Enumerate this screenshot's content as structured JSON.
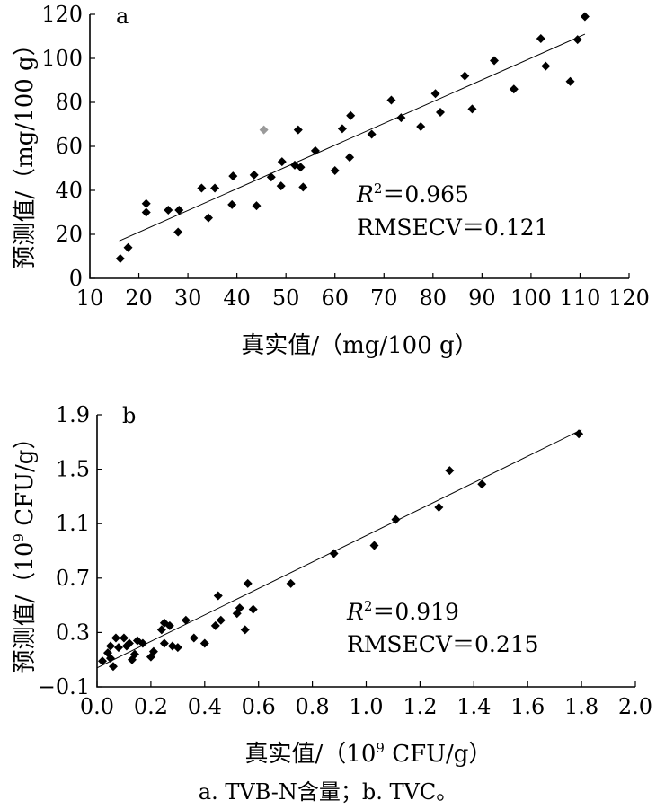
{
  "chart_data": [
    {
      "panel_label": "a",
      "type": "scatter",
      "xlabel": "真实值/（mg/100 g）",
      "ylabel": "预测值/（mg/100 g）",
      "xlim": [
        10,
        120
      ],
      "ylim": [
        0,
        120
      ],
      "xticks": [
        "10",
        "20",
        "30",
        "40",
        "50",
        "60",
        "70",
        "80",
        "90",
        "100",
        "110",
        "120"
      ],
      "yticks": [
        "0",
        "20",
        "40",
        "60",
        "80",
        "100",
        "120"
      ],
      "fit_line": {
        "x1": 16,
        "y1": 17,
        "x2": 111,
        "y2": 111
      },
      "stats": {
        "r2_label": "R",
        "r2_sup": "2",
        "r2_value": "＝0.965",
        "rmsecv": "RMSECV＝0.121"
      },
      "points": [
        {
          "x": 16.2,
          "y": 9
        },
        {
          "x": 17.8,
          "y": 14
        },
        {
          "x": 21.5,
          "y": 30
        },
        {
          "x": 21.5,
          "y": 34
        },
        {
          "x": 26,
          "y": 31
        },
        {
          "x": 28,
          "y": 21
        },
        {
          "x": 28.2,
          "y": 31
        },
        {
          "x": 32.8,
          "y": 41
        },
        {
          "x": 34.2,
          "y": 27.5
        },
        {
          "x": 35.5,
          "y": 41
        },
        {
          "x": 39,
          "y": 33.5
        },
        {
          "x": 39.2,
          "y": 46.5
        },
        {
          "x": 43.5,
          "y": 47
        },
        {
          "x": 44,
          "y": 33
        },
        {
          "x": 47,
          "y": 46
        },
        {
          "x": 49,
          "y": 42
        },
        {
          "x": 49.2,
          "y": 53
        },
        {
          "x": 51.8,
          "y": 51.5
        },
        {
          "x": 52.5,
          "y": 67.5
        },
        {
          "x": 53,
          "y": 50.5
        },
        {
          "x": 53.5,
          "y": 41.5
        },
        {
          "x": 56,
          "y": 58
        },
        {
          "x": 60,
          "y": 49
        },
        {
          "x": 61.5,
          "y": 68
        },
        {
          "x": 63,
          "y": 55
        },
        {
          "x": 63.2,
          "y": 74
        },
        {
          "x": 67.5,
          "y": 65.5
        },
        {
          "x": 71.5,
          "y": 81
        },
        {
          "x": 73.5,
          "y": 73
        },
        {
          "x": 77.5,
          "y": 69
        },
        {
          "x": 80.5,
          "y": 84
        },
        {
          "x": 81.5,
          "y": 75.5
        },
        {
          "x": 86.5,
          "y": 92
        },
        {
          "x": 88,
          "y": 77
        },
        {
          "x": 92.5,
          "y": 99
        },
        {
          "x": 96.5,
          "y": 86
        },
        {
          "x": 102,
          "y": 109
        },
        {
          "x": 103,
          "y": 96.5
        },
        {
          "x": 108,
          "y": 89.5
        },
        {
          "x": 109.5,
          "y": 108.5
        },
        {
          "x": 111,
          "y": 119
        }
      ],
      "outlier": {
        "x": 45.5,
        "y": 67.5,
        "color": "#9a9a9a"
      }
    },
    {
      "panel_label": "b",
      "type": "scatter",
      "xlabel": "真实值/（10",
      "xlabel_sup": "9",
      "xlabel_tail": " CFU/g）",
      "ylabel": "预测值/（10",
      "ylabel_sup": "9",
      "ylabel_tail": " CFU/g）",
      "xlim": [
        0.0,
        2.0
      ],
      "ylim": [
        -0.1,
        1.9
      ],
      "xticks": [
        "0.0",
        "0.2",
        "0.4",
        "0.6",
        "0.8",
        "1.0",
        "1.2",
        "1.4",
        "1.6",
        "1.8",
        "2.0"
      ],
      "yticks": [
        "−0.1",
        "0.3",
        "0.7",
        "1.1",
        "1.5",
        "1.9"
      ],
      "fit_line": {
        "x1": 0.0,
        "y1": 0.04,
        "x2": 1.8,
        "y2": 1.79
      },
      "stats": {
        "r2_label": "R",
        "r2_sup": "2",
        "r2_value": "＝0.919",
        "rmsecv": "RMSECV＝0.215"
      },
      "points": [
        {
          "x": 0.02,
          "y": 0.09
        },
        {
          "x": 0.04,
          "y": 0.15
        },
        {
          "x": 0.05,
          "y": 0.2
        },
        {
          "x": 0.05,
          "y": 0.11
        },
        {
          "x": 0.06,
          "y": 0.05
        },
        {
          "x": 0.07,
          "y": 0.26
        },
        {
          "x": 0.08,
          "y": 0.19
        },
        {
          "x": 0.1,
          "y": 0.26
        },
        {
          "x": 0.11,
          "y": 0.2
        },
        {
          "x": 0.12,
          "y": 0.22
        },
        {
          "x": 0.13,
          "y": 0.1
        },
        {
          "x": 0.14,
          "y": 0.14
        },
        {
          "x": 0.15,
          "y": 0.24
        },
        {
          "x": 0.17,
          "y": 0.22
        },
        {
          "x": 0.2,
          "y": 0.12
        },
        {
          "x": 0.21,
          "y": 0.16
        },
        {
          "x": 0.24,
          "y": 0.32
        },
        {
          "x": 0.25,
          "y": 0.22
        },
        {
          "x": 0.25,
          "y": 0.37
        },
        {
          "x": 0.27,
          "y": 0.35
        },
        {
          "x": 0.28,
          "y": 0.2
        },
        {
          "x": 0.3,
          "y": 0.19
        },
        {
          "x": 0.33,
          "y": 0.39
        },
        {
          "x": 0.36,
          "y": 0.26
        },
        {
          "x": 0.4,
          "y": 0.22
        },
        {
          "x": 0.44,
          "y": 0.35
        },
        {
          "x": 0.46,
          "y": 0.39
        },
        {
          "x": 0.45,
          "y": 0.57
        },
        {
          "x": 0.52,
          "y": 0.44
        },
        {
          "x": 0.53,
          "y": 0.48
        },
        {
          "x": 0.55,
          "y": 0.32
        },
        {
          "x": 0.56,
          "y": 0.66
        },
        {
          "x": 0.58,
          "y": 0.47
        },
        {
          "x": 0.72,
          "y": 0.66
        },
        {
          "x": 0.88,
          "y": 0.88
        },
        {
          "x": 1.03,
          "y": 0.94
        },
        {
          "x": 1.11,
          "y": 1.13
        },
        {
          "x": 1.27,
          "y": 1.22
        },
        {
          "x": 1.31,
          "y": 1.49
        },
        {
          "x": 1.43,
          "y": 1.39
        },
        {
          "x": 1.79,
          "y": 1.76
        }
      ]
    }
  ],
  "caption": "a. TVB-N含量；b. TVC。",
  "colors": {
    "marker": "#000000",
    "axis": "#000000"
  }
}
